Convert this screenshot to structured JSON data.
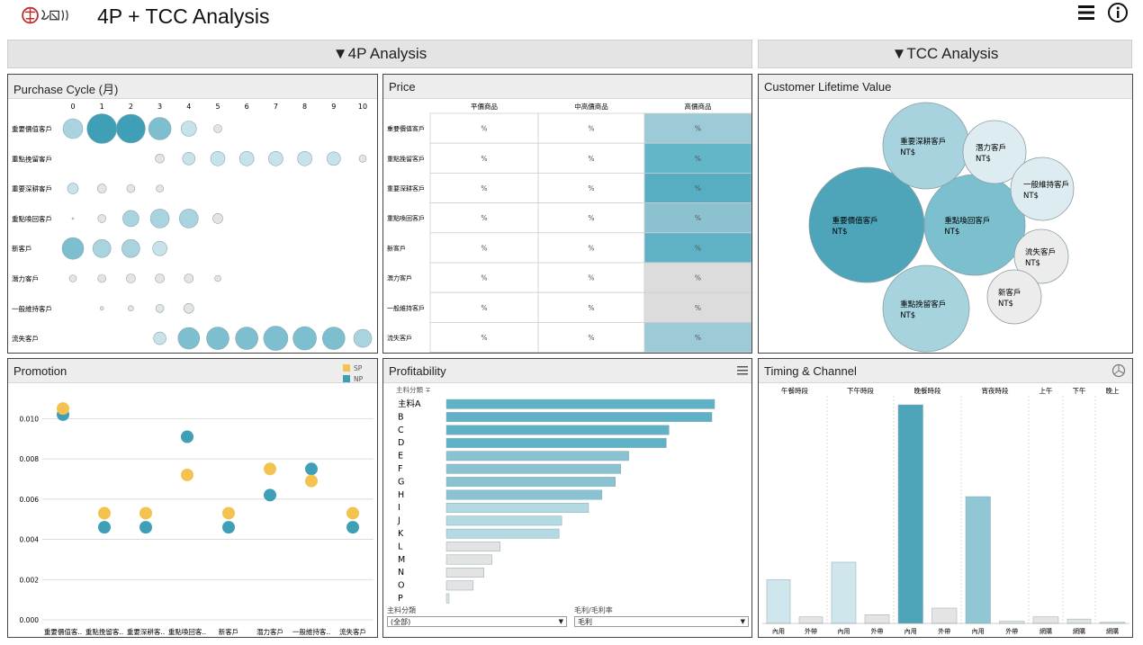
{
  "header": {
    "title": "4P + TCC Analysis",
    "logo_name": "brand-logo",
    "menu_icon": "menu-icon",
    "info_icon": "info-icon"
  },
  "sections": {
    "left": "▼4P Analysis",
    "right": "▼TCC Analysis"
  },
  "colors": {
    "teal_dark": "#3f9fb6",
    "teal": "#5bb1c4",
    "teal_mid": "#7fc1cf",
    "teal_light": "#b3d9e3",
    "teal_pale": "#d6e9ee",
    "grey_light": "#e0e0e0",
    "yellow": "#f4c24e"
  },
  "purchase_cycle": {
    "title": "Purchase Cycle (月)",
    "x_ticks": [
      "0",
      "1",
      "2",
      "3",
      "4",
      "5",
      "6",
      "7",
      "8",
      "9",
      "10"
    ],
    "rows": [
      {
        "label": "重要價值客戶",
        "sizes": [
          22,
          33,
          32,
          25,
          17,
          9,
          0,
          0,
          0,
          0,
          0
        ]
      },
      {
        "label": "重點挽留客戶",
        "sizes": [
          0,
          0,
          0,
          10,
          14,
          16,
          16,
          16,
          16,
          15,
          8
        ]
      },
      {
        "label": "重要深耕客戶",
        "sizes": [
          12,
          10,
          9,
          8,
          0,
          0,
          0,
          0,
          0,
          0,
          0
        ]
      },
      {
        "label": "重點喚回客戶",
        "sizes": [
          2,
          9,
          18,
          21,
          21,
          11,
          0,
          0,
          0,
          0,
          0
        ]
      },
      {
        "label": "新客戶",
        "sizes": [
          24,
          20,
          20,
          16,
          0,
          0,
          0,
          0,
          0,
          0,
          0
        ]
      },
      {
        "label": "潛力客戶",
        "sizes": [
          8,
          9,
          10,
          10,
          10,
          7,
          0,
          0,
          0,
          0,
          0
        ]
      },
      {
        "label": "一般維持客戶",
        "sizes": [
          0,
          4,
          6,
          9,
          11,
          0,
          0,
          0,
          0,
          0,
          0
        ]
      },
      {
        "label": "流失客戶",
        "sizes": [
          0,
          0,
          0,
          14,
          24,
          25,
          25,
          27,
          26,
          25,
          20
        ]
      }
    ]
  },
  "price": {
    "title": "Price",
    "columns": [
      "平價商品",
      "中高價商品",
      "高價商品"
    ],
    "rows": [
      {
        "label": "重要價值客戶",
        "cells": [
          "%",
          "%",
          "%"
        ],
        "shade": "#9ccad6"
      },
      {
        "label": "重點挽留客戶",
        "cells": [
          "%",
          "%",
          "%"
        ],
        "shade": "#63b6c8"
      },
      {
        "label": "重要深耕客戶",
        "cells": [
          "%",
          "%",
          "%"
        ],
        "shade": "#57aec3"
      },
      {
        "label": "重點喚回客戶",
        "cells": [
          "%",
          "%",
          "%"
        ],
        "shade": "#8cc2cf"
      },
      {
        "label": "新客戶",
        "cells": [
          "%",
          "%",
          "%"
        ],
        "shade": "#5fb2c6"
      },
      {
        "label": "潛力客戶",
        "cells": [
          "%",
          "%",
          "%"
        ],
        "shade": "#dcdcdc"
      },
      {
        "label": "一般維持客戶",
        "cells": [
          "%",
          "%",
          "%"
        ],
        "shade": "#dcdcdc"
      },
      {
        "label": "流失客戶",
        "cells": [
          "%",
          "%",
          "%"
        ],
        "shade": "#9ccad6"
      }
    ]
  },
  "clv": {
    "title": "Customer Lifetime Value",
    "bubbles": [
      {
        "name": "重要價值客戶",
        "value": "NT$",
        "color": "#4ea5b9"
      },
      {
        "name": "重點喚回客戶",
        "value": "NT$",
        "color": "#7cc0cf"
      },
      {
        "name": "重要深耕客戶",
        "value": "NT$",
        "color": "#a6d3de"
      },
      {
        "name": "重點挽留客戶",
        "value": "NT$",
        "color": "#a6d3de"
      },
      {
        "name": "潛力客戶",
        "value": "NT$",
        "color": "#dcecf0"
      },
      {
        "name": "一般維持客戶",
        "value": "NT$",
        "color": "#dcecf0"
      },
      {
        "name": "流失客戶",
        "value": "NT$",
        "color": "#ececec"
      },
      {
        "name": "新客戶",
        "value": "NT$",
        "color": "#ececec"
      }
    ]
  },
  "chart_data": [
    {
      "type": "scatter",
      "title": "Promotion",
      "legend": [
        "SP",
        "NP"
      ],
      "categories": [
        "重要價值客..",
        "重點挽留客..",
        "重要深耕客..",
        "重點喚回客..",
        "新客戶",
        "潛力客戶",
        "一般維持客..",
        "流失客戶"
      ],
      "y_ticks": [
        "0.010",
        "0.008",
        "0.006",
        "0.004",
        "0.002",
        "0.000"
      ],
      "ylim": [
        0,
        0.011
      ],
      "series": [
        {
          "name": "SP",
          "values": [
            0.0105,
            0.0053,
            0.0053,
            0.0072,
            0.0053,
            0.0075,
            0.0069,
            0.0053
          ]
        },
        {
          "name": "NP",
          "values": [
            0.0102,
            0.0046,
            0.0046,
            0.0091,
            0.0046,
            0.0062,
            0.0075,
            0.0046
          ]
        }
      ]
    },
    {
      "type": "bar",
      "title": "Profitability",
      "header_label": "主料分類 ∓",
      "categories": [
        "主料A",
        "B",
        "C",
        "D",
        "E",
        "F",
        "G",
        "H",
        "I",
        "J",
        "K",
        "L",
        "M",
        "N",
        "O",
        "P"
      ],
      "values": [
        100,
        99,
        83,
        82,
        68,
        65,
        63,
        58,
        53,
        43,
        42,
        20,
        17,
        14,
        10,
        1
      ],
      "filter1": {
        "label": "主料分類",
        "value": "(全部)"
      },
      "filter2": {
        "label": "毛利/毛利率",
        "value": "毛利"
      }
    },
    {
      "type": "bar",
      "title": "Timing & Channel",
      "groups": [
        "午餐時段",
        "下午時段",
        "晚餐時段",
        "宵夜時段",
        "上午",
        "下午",
        "晚上"
      ],
      "bars": [
        {
          "group": "午餐時段",
          "channel": "內用",
          "value": 20,
          "color": "#cfe6ec"
        },
        {
          "group": "午餐時段",
          "channel": "外帶",
          "value": 3,
          "color": "#e4e4e4"
        },
        {
          "group": "下午時段",
          "channel": "內用",
          "value": 28,
          "color": "#cfe6ec"
        },
        {
          "group": "下午時段",
          "channel": "外帶",
          "value": 4,
          "color": "#e4e4e4"
        },
        {
          "group": "晚餐時段",
          "channel": "內用",
          "value": 100,
          "color": "#4ea5b9"
        },
        {
          "group": "晚餐時段",
          "channel": "外帶",
          "value": 7,
          "color": "#e4e4e4"
        },
        {
          "group": "宵夜時段",
          "channel": "內用",
          "value": 58,
          "color": "#91c7d4"
        },
        {
          "group": "宵夜時段",
          "channel": "外帶",
          "value": 1,
          "color": "#e4e4e4"
        },
        {
          "group": "上午",
          "channel": "網購",
          "value": 3,
          "color": "#e4e4e4"
        },
        {
          "group": "下午",
          "channel": "網購",
          "value": 2,
          "color": "#e4e4e4"
        },
        {
          "group": "晚上",
          "channel": "網購",
          "value": 0.5,
          "color": "#e4e4e4"
        }
      ]
    }
  ]
}
